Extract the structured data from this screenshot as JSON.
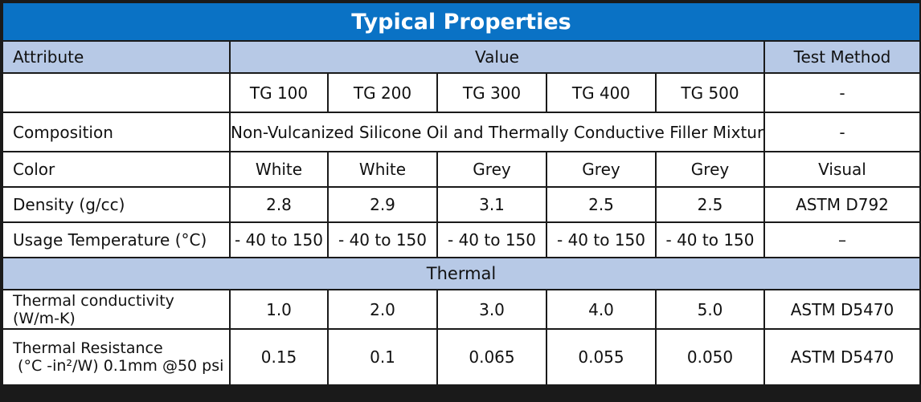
{
  "title": "Typical Properties",
  "header": {
    "attribute": "Attribute",
    "value": "Value",
    "test_method": "Test Method"
  },
  "models": {
    "blank": "",
    "items": [
      "TG 100",
      "TG 200",
      "TG 300",
      "TG 400",
      "TG 500"
    ],
    "test_method": "-"
  },
  "rows": [
    {
      "attribute": "Composition",
      "merged_value": "Non-Vulcanized Silicone Oil and Thermally Conductive Filler Mixture",
      "test_method": "-"
    },
    {
      "attribute": "Color",
      "values": [
        "White",
        "White",
        "Grey",
        "Grey",
        "Grey"
      ],
      "test_method": "Visual"
    },
    {
      "attribute": "Density (g/cc)",
      "values": [
        "2.8",
        "2.9",
        "3.1",
        "2.5",
        "2.5"
      ],
      "test_method": "ASTM D792"
    },
    {
      "attribute": "Usage Temperature (°C)",
      "values": [
        "- 40 to 150",
        "- 40 to 150",
        "- 40 to 150",
        "- 40 to 150",
        "- 40 to 150"
      ],
      "test_method": "–"
    }
  ],
  "thermal_section": "Thermal",
  "thermal_rows": [
    {
      "attribute_line1": "Thermal conductivity",
      "attribute_line2": "(W/m-K)",
      "values": [
        "1.0",
        "2.0",
        "3.0",
        "4.0",
        "5.0"
      ],
      "test_method": "ASTM D5470"
    },
    {
      "attribute_line1": "Thermal Resistance",
      "attribute_line2": " (°C -in²/W) 0.1mm @50 psi",
      "values": [
        "0.15",
        "0.1",
        "0.065",
        "0.055",
        "0.050"
      ],
      "test_method": "ASTM D5470"
    }
  ],
  "colors": {
    "title_bg": "#0a72c5",
    "header_bg": "#b7c9e6",
    "border": "#1a1a1a"
  }
}
